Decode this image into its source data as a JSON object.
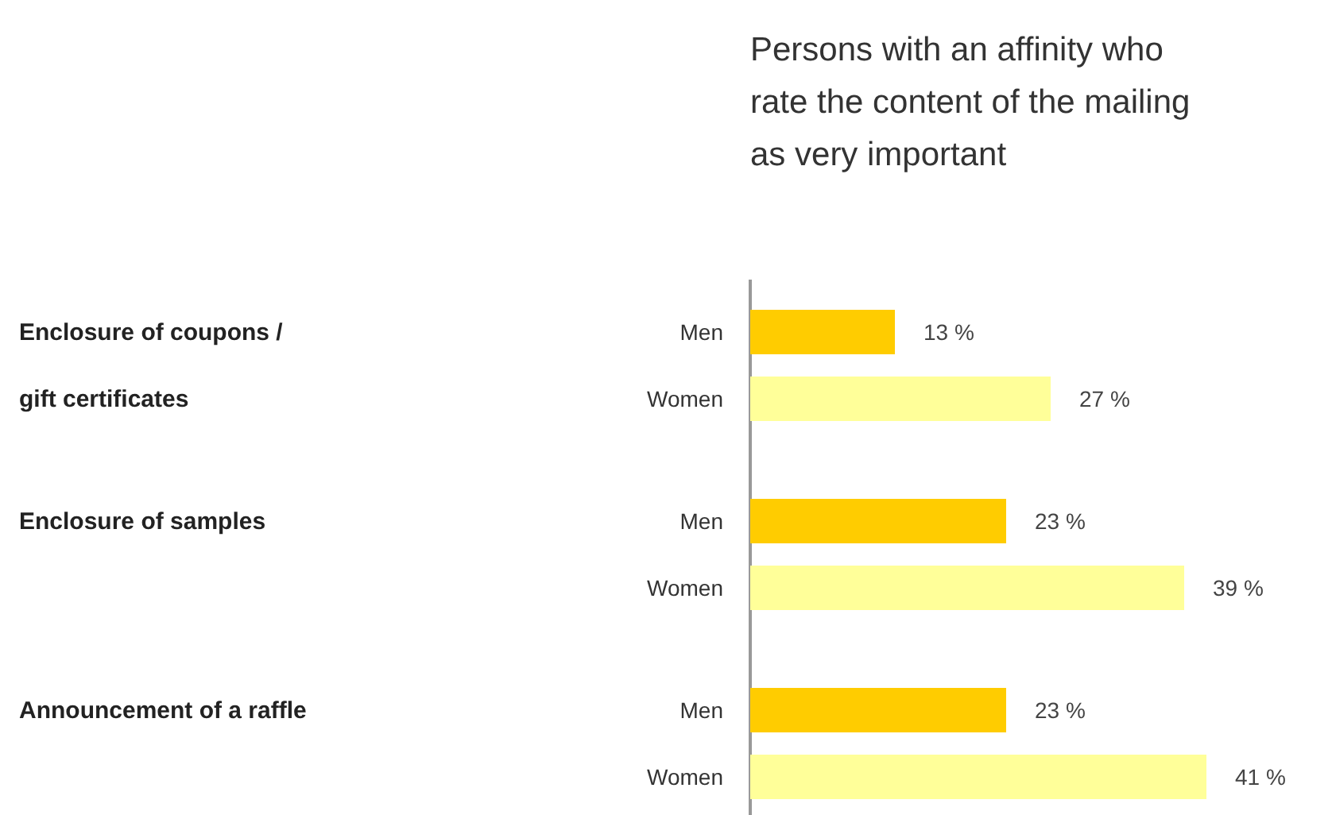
{
  "chart_data": {
    "type": "bar",
    "orientation": "horizontal",
    "title": "Persons with an affinity who rate the content of the mailing as very important",
    "categories": [
      "Enclosure of coupons / gift certificates",
      "Enclosure of samples",
      "Announcement of a raffle"
    ],
    "legend": false,
    "series": [
      {
        "name": "Men",
        "color": "#ffcc00",
        "values": [
          13,
          23,
          23
        ],
        "value_labels": [
          "13 %",
          "23 %",
          "23 %"
        ]
      },
      {
        "name": "Women",
        "color": "#ffff99",
        "values": [
          27,
          39,
          41
        ],
        "value_labels": [
          "27 %",
          "39 %",
          "41 %"
        ]
      }
    ]
  }
}
